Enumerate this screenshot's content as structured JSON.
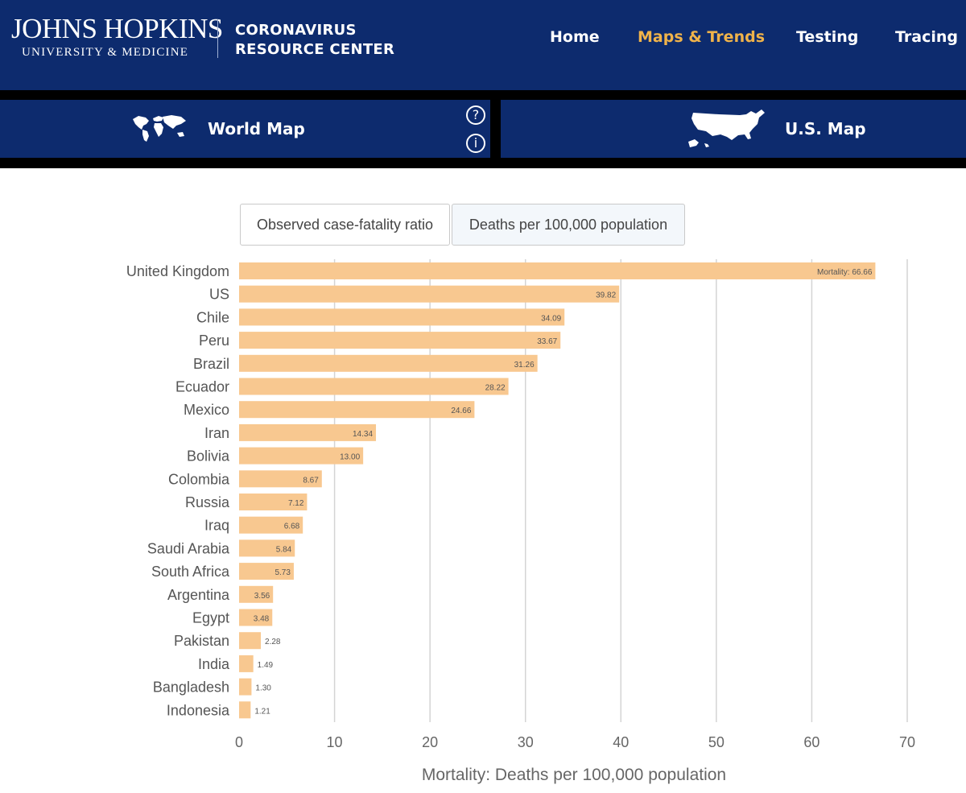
{
  "header": {
    "brand_title": "JOHNS HOPKINS",
    "brand_subtitle": "UNIVERSITY & MEDICINE",
    "center_line1": "CORONAVIRUS",
    "center_line2": "RESOURCE CENTER",
    "nav": [
      {
        "label": "Home",
        "active": false
      },
      {
        "label": "Maps & Trends",
        "active": true
      },
      {
        "label": "Testing",
        "active": false
      },
      {
        "label": "Tracing",
        "active": false
      }
    ],
    "accent_color": "#f0b34a",
    "bg_color": "#0d2b6e"
  },
  "map_tabs": {
    "world": {
      "label": "World Map",
      "icon": "world-map-icon"
    },
    "us": {
      "label": "U.S. Map",
      "icon": "us-map-icon"
    },
    "help_icon_glyph": "?",
    "info_icon_glyph": "i"
  },
  "toggles": [
    {
      "label": "Observed case-fatality ratio",
      "selected": false
    },
    {
      "label": "Deaths per 100,000 population",
      "selected": true
    }
  ],
  "chart_data": {
    "type": "bar",
    "orientation": "horizontal",
    "categories": [
      "United Kingdom",
      "US",
      "Chile",
      "Peru",
      "Brazil",
      "Ecuador",
      "Mexico",
      "Iran",
      "Bolivia",
      "Colombia",
      "Russia",
      "Iraq",
      "Saudi Arabia",
      "South Africa",
      "Argentina",
      "Egypt",
      "Pakistan",
      "India",
      "Bangladesh",
      "Indonesia"
    ],
    "values": [
      66.66,
      39.82,
      34.09,
      33.67,
      31.26,
      28.22,
      24.66,
      14.34,
      13.0,
      8.67,
      7.12,
      6.68,
      5.84,
      5.73,
      3.56,
      3.48,
      2.28,
      1.49,
      1.3,
      1.21
    ],
    "value_labels": [
      "Mortality: 66.66",
      "39.82",
      "34.09",
      "33.67",
      "31.26",
      "28.22",
      "24.66",
      "14.34",
      "13.00",
      "8.67",
      "7.12",
      "6.68",
      "5.84",
      "5.73",
      "3.56",
      "3.48",
      "2.28",
      "1.49",
      "1.30",
      "1.21"
    ],
    "xlabel": "Mortality: Deaths per 100,000 population",
    "xlim": [
      0,
      70
    ],
    "xticks": [
      "0",
      "10",
      "20",
      "30",
      "40",
      "50",
      "60",
      "70"
    ],
    "grid": "vertical",
    "bar_color": "#f8c890"
  }
}
